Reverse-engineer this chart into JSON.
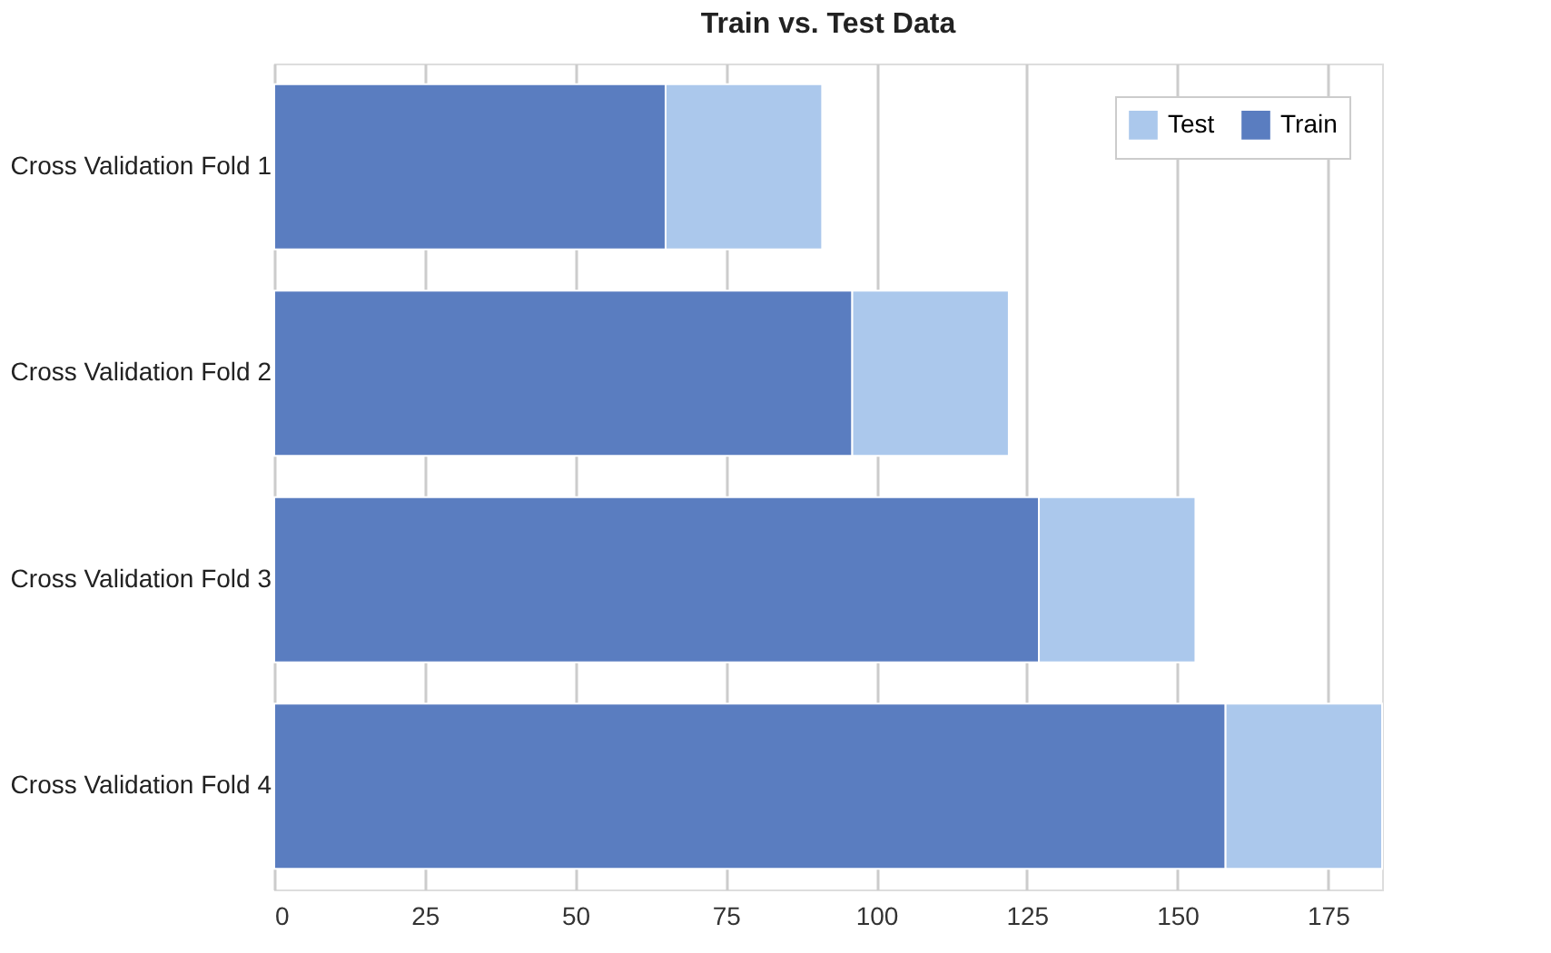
{
  "chart_data": {
    "type": "bar",
    "orientation": "horizontal",
    "stacked": true,
    "title": "Train vs. Test Data",
    "categories": [
      "Cross Validation Fold 1",
      "Cross Validation Fold 2",
      "Cross Validation Fold 3",
      "Cross Validation Fold 4"
    ],
    "series": [
      {
        "name": "Train",
        "color": "#5a7dc0",
        "values": [
          65,
          96,
          127,
          158
        ]
      },
      {
        "name": "Test",
        "color": "#abc8ec",
        "values": [
          26,
          26,
          26,
          26
        ]
      }
    ],
    "xlim": [
      0,
      184
    ],
    "xticks": [
      0,
      25,
      50,
      75,
      100,
      125,
      150,
      175
    ],
    "grid": "x",
    "legend": "top right"
  }
}
